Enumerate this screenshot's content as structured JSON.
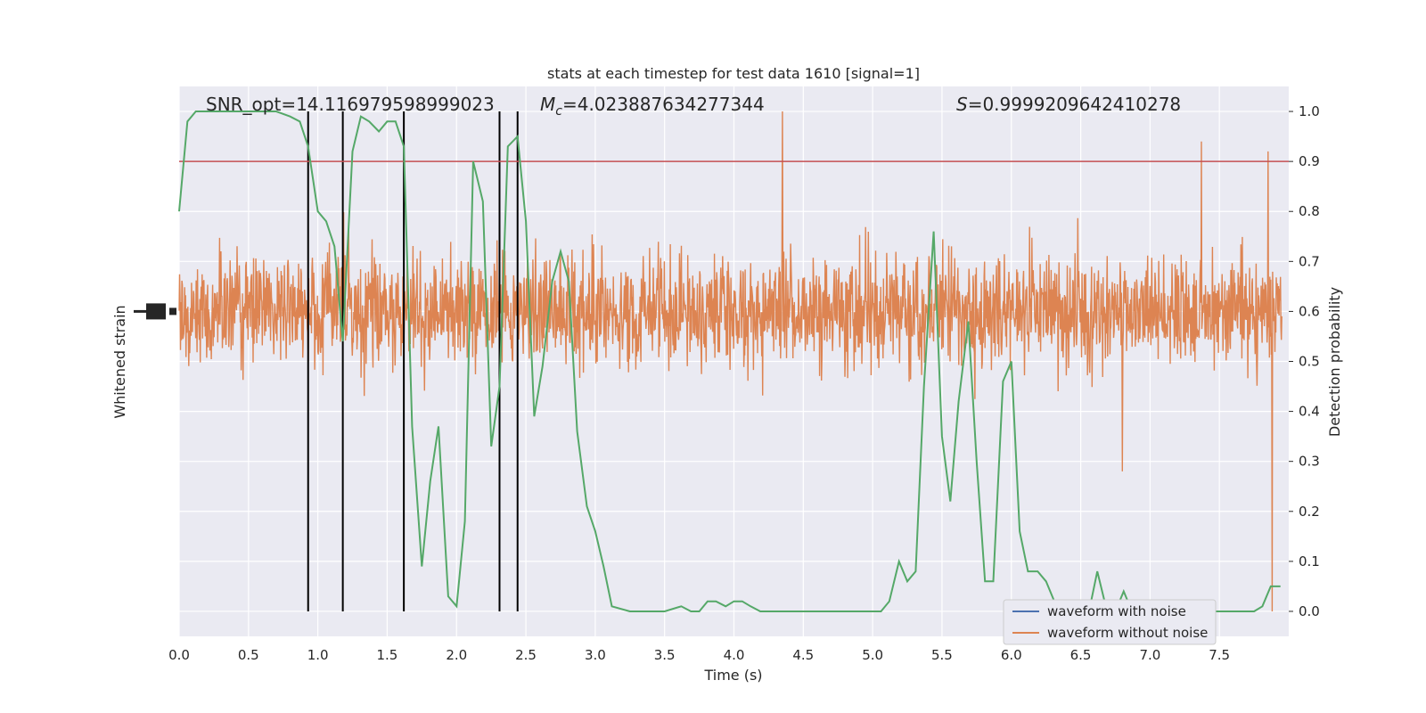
{
  "chart_data": {
    "type": "line",
    "title": "stats at each timestep for test data 1610 [signal=1]",
    "xlabel": "Time (s)",
    "ylabel_left": "Whitened strain",
    "ylabel_right": "Detection probability",
    "xlim": [
      0,
      8
    ],
    "ylim_right": [
      -0.05,
      1.05
    ],
    "x_ticks": [
      0,
      0.5,
      1,
      1.5,
      2,
      2.5,
      3,
      3.5,
      4,
      4.5,
      5,
      5.5,
      6,
      6.5,
      7,
      7.5
    ],
    "x_tick_labels": [
      "0.0",
      "0.5",
      "1.0",
      "1.5",
      "2.0",
      "2.5",
      "3.0",
      "3.5",
      "4.0",
      "4.5",
      "5.0",
      "5.5",
      "6.0",
      "6.5",
      "7.0",
      "7.5"
    ],
    "y_ticks_right": [
      0,
      0.1,
      0.2,
      0.3,
      0.4,
      0.5,
      0.6,
      0.7,
      0.8,
      0.9,
      1.0
    ],
    "y_tick_labels_right": [
      "0.0",
      "0.1",
      "0.2",
      "0.3",
      "0.4",
      "0.5",
      "0.6",
      "0.7",
      "0.8",
      "0.9",
      "1.0"
    ],
    "grid": true,
    "legend_position": "lower-right",
    "annotations": {
      "snr": "SNR_opt=14.116979598999023",
      "mc_symbol": "M",
      "mc_sub": "c",
      "mc_value": "=4.023887634277344",
      "s_symbol": "S",
      "s_value": "=0.9999209642410278"
    },
    "threshold": 0.9,
    "vertical_lines_x": [
      0.93,
      1.18,
      1.62,
      2.31,
      2.44
    ],
    "series": [
      {
        "name": "waveform with noise",
        "color": "#4c72b0",
        "note_values": "hidden beneath orange trace"
      },
      {
        "name": "waveform without noise",
        "color": "#dd8452",
        "center": 0.6,
        "typical_range": [
          0.4,
          0.8
        ],
        "spikes": [
          {
            "x": 4.35,
            "y": 1.0
          },
          {
            "x": 7.85,
            "y": 0.92
          },
          {
            "x": 7.88,
            "y": 0.0
          },
          {
            "x": 6.8,
            "y": 0.28
          },
          {
            "x": 7.37,
            "y": 0.94
          }
        ]
      },
      {
        "name_hidden": true,
        "color": "#55a868",
        "x": [
          0.0,
          0.06,
          0.12,
          0.2,
          0.3,
          0.4,
          0.5,
          0.6,
          0.7,
          0.8,
          0.87,
          0.93,
          1.0,
          1.06,
          1.12,
          1.18,
          1.25,
          1.31,
          1.37,
          1.44,
          1.5,
          1.56,
          1.62,
          1.68,
          1.75,
          1.81,
          1.87,
          1.94,
          2.0,
          2.06,
          2.12,
          2.19,
          2.25,
          2.31,
          2.37,
          2.44,
          2.5,
          2.56,
          2.62,
          2.69,
          2.75,
          2.81,
          2.87,
          2.94,
          3.0,
          3.06,
          3.12,
          3.25,
          3.37,
          3.5,
          3.62,
          3.69,
          3.75,
          3.81,
          3.87,
          3.94,
          4.0,
          4.06,
          4.12,
          4.19,
          4.25,
          4.31,
          4.37,
          4.44,
          4.5,
          4.56,
          4.62,
          4.69,
          4.75,
          4.81,
          4.87,
          4.94,
          5.0,
          5.06,
          5.12,
          5.19,
          5.25,
          5.31,
          5.37,
          5.44,
          5.5,
          5.56,
          5.62,
          5.69,
          5.75,
          5.81,
          5.87,
          5.94,
          6.0,
          6.06,
          6.12,
          6.19,
          6.25,
          6.31,
          6.37,
          6.44,
          6.5,
          6.56,
          6.62,
          6.69,
          6.75,
          6.81,
          6.87,
          6.94,
          7.0,
          7.06,
          7.12,
          7.19,
          7.25,
          7.31,
          7.37,
          7.44,
          7.5,
          7.56,
          7.62,
          7.69,
          7.75,
          7.81,
          7.87,
          7.94
        ],
        "values": [
          0.8,
          0.98,
          1.0,
          1.0,
          1.0,
          1.0,
          1.0,
          1.0,
          1.0,
          0.99,
          0.98,
          0.93,
          0.8,
          0.78,
          0.73,
          0.54,
          0.92,
          0.99,
          0.98,
          0.96,
          0.98,
          0.98,
          0.93,
          0.37,
          0.09,
          0.26,
          0.37,
          0.03,
          0.01,
          0.18,
          0.9,
          0.82,
          0.33,
          0.45,
          0.93,
          0.95,
          0.78,
          0.39,
          0.49,
          0.66,
          0.72,
          0.66,
          0.36,
          0.21,
          0.16,
          0.09,
          0.01,
          0.0,
          0.0,
          0.0,
          0.01,
          0.0,
          0.0,
          0.02,
          0.02,
          0.01,
          0.02,
          0.02,
          0.01,
          0.0,
          0.0,
          0.0,
          0.0,
          0.0,
          0.0,
          0.0,
          0.0,
          0.0,
          0.0,
          0.0,
          0.0,
          0.0,
          0.0,
          0.0,
          0.02,
          0.1,
          0.06,
          0.08,
          0.45,
          0.76,
          0.35,
          0.22,
          0.42,
          0.58,
          0.3,
          0.06,
          0.06,
          0.46,
          0.5,
          0.16,
          0.08,
          0.08,
          0.06,
          0.02,
          0.0,
          0.0,
          0.0,
          0.0,
          0.08,
          0.0,
          0.0,
          0.04,
          0.0,
          0.0,
          0.0,
          0.0,
          0.0,
          0.0,
          0.0,
          0.0,
          0.0,
          0.0,
          0.0,
          0.0,
          0.0,
          0.0,
          0.0,
          0.01,
          0.05,
          0.05
        ]
      }
    ],
    "threshold_color": "#c44e52",
    "vline_color": "#000000"
  }
}
